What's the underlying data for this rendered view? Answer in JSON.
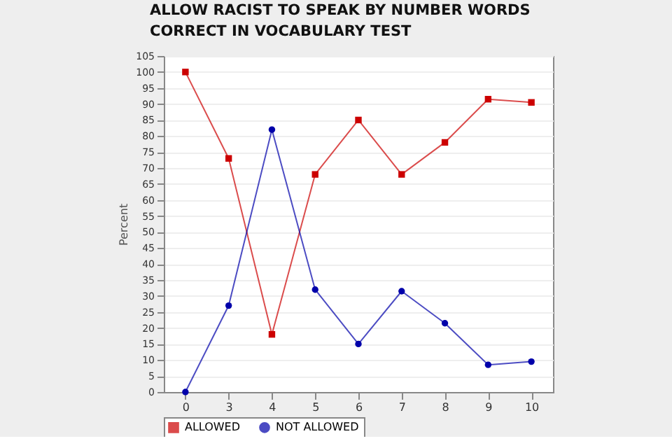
{
  "chart_data": {
    "type": "line",
    "title": "ALLOW RACIST TO SPEAK BY NUMBER WORDS CORRECT IN VOCABULARY TEST",
    "ylabel": "Percent",
    "categories": [
      "0",
      "3",
      "4",
      "5",
      "6",
      "7",
      "8",
      "9",
      "10"
    ],
    "series": [
      {
        "name": "ALLOWED",
        "color": "#cc0000",
        "marker": "square",
        "values": [
          100,
          73,
          18,
          68,
          85,
          68,
          78,
          91.5,
          90.5
        ]
      },
      {
        "name": "NOT ALLOWED",
        "color": "#0000aa",
        "marker": "circle",
        "values": [
          0,
          27,
          82,
          32,
          15,
          31.5,
          21.5,
          8.5,
          9.5
        ]
      }
    ],
    "ylim": [
      0,
      105
    ],
    "yticks": [
      0,
      5,
      10,
      15,
      20,
      25,
      30,
      35,
      40,
      45,
      50,
      55,
      60,
      65,
      70,
      75,
      80,
      85,
      90,
      95,
      100,
      105
    ],
    "grid": "y",
    "legend": "bottom"
  }
}
